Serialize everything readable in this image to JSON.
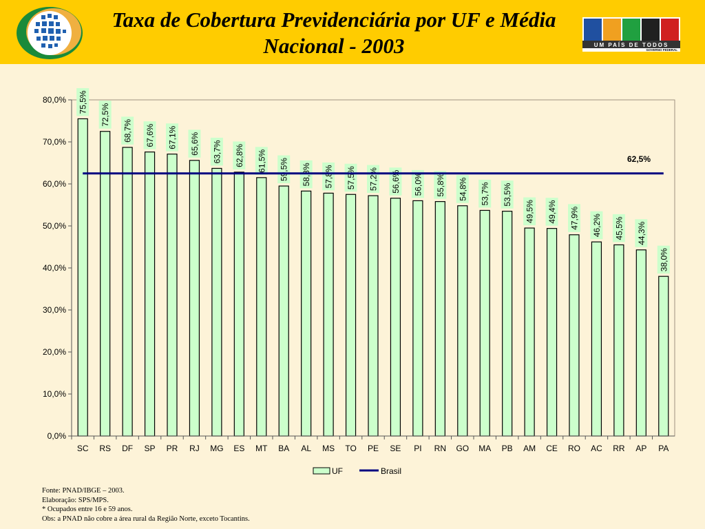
{
  "header": {
    "title_line1": "Taxa de Cobertura Previdenciária por UF e Média",
    "title_line2": "Nacional - 2003",
    "logo_right_text": "BRASIL",
    "logo_right_tagline": "UM PAÍS DE TODOS",
    "logo_right_subtitle": "GOVERNO FEDERAL"
  },
  "chart_data": {
    "type": "bar",
    "title": "",
    "xlabel": "",
    "ylabel": "",
    "ylim": [
      0,
      80
    ],
    "yticks": [
      "0,0%",
      "10,0%",
      "20,0%",
      "30,0%",
      "40,0%",
      "50,0%",
      "60,0%",
      "70,0%",
      "80,0%"
    ],
    "grid": false,
    "legend_placement": "bottom",
    "categories": [
      "SC",
      "RS",
      "DF",
      "SP",
      "PR",
      "RJ",
      "MG",
      "ES",
      "MT",
      "BA",
      "AL",
      "MS",
      "TO",
      "PE",
      "SE",
      "PI",
      "RN",
      "GO",
      "MA",
      "PB",
      "AM",
      "CE",
      "RO",
      "AC",
      "RR",
      "AP",
      "PA"
    ],
    "series": [
      {
        "name": "UF",
        "type": "bar",
        "color": "#ccffcc",
        "values": [
          75.5,
          72.5,
          68.7,
          67.6,
          67.1,
          65.6,
          63.7,
          62.8,
          61.5,
          59.5,
          58.3,
          57.8,
          57.5,
          57.2,
          56.6,
          56.0,
          55.8,
          54.8,
          53.7,
          53.5,
          49.5,
          49.4,
          47.9,
          46.2,
          45.5,
          44.3,
          38.0
        ],
        "labels": [
          "75,5%",
          "72,5%",
          "68,7%",
          "67,6%",
          "67,1%",
          "65,6%",
          "63,7%",
          "62,8%",
          "61,5%",
          "59,5%",
          "58,3%",
          "57,8%",
          "57,5%",
          "57,2%",
          "56,6%",
          "56,0%",
          "55,8%",
          "54,8%",
          "53,7%",
          "53,5%",
          "49,5%",
          "49,4%",
          "47,9%",
          "46,2%",
          "45,5%",
          "44,3%",
          "38,0%"
        ]
      },
      {
        "name": "Brasil",
        "type": "line",
        "color": "#000080",
        "value": 62.5,
        "label": "62,5%"
      }
    ]
  },
  "notes": [
    "Fonte: PNAD/IBGE – 2003.",
    "Elaboração: SPS/MPS.",
    "* Ocupados entre 16 e 59 anos.",
    "Obs: a PNAD não cobre a área rural da Região Norte, exceto Tocantins."
  ]
}
